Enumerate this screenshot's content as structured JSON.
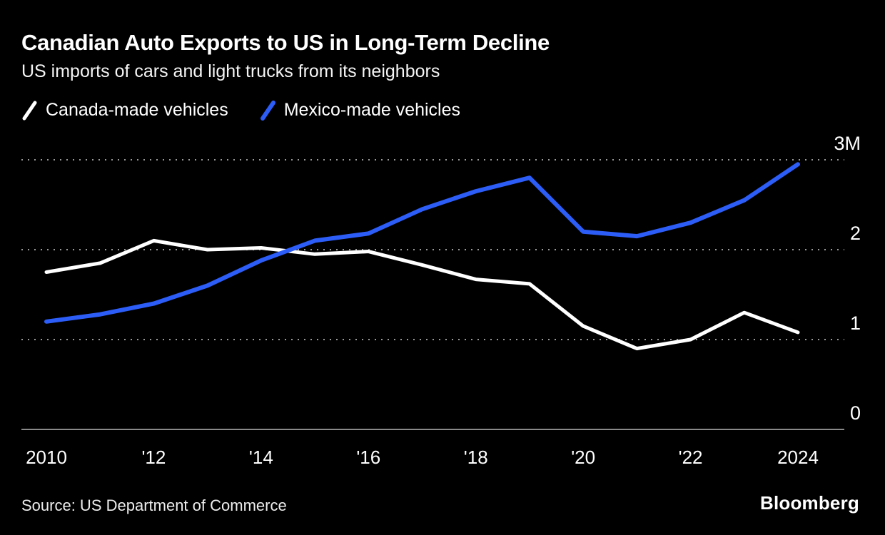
{
  "header": {
    "title": "Canadian Auto Exports to US in Long-Term Decline",
    "subtitle": "US imports of cars and light trucks from its neighbors"
  },
  "legend": [
    {
      "label": "Canada-made vehicles",
      "color": "#ffffff"
    },
    {
      "label": "Mexico-made vehicles",
      "color": "#2d5df7"
    }
  ],
  "chart_data": {
    "type": "line",
    "title": "Canadian Auto Exports to US in Long-Term Decline",
    "subtitle": "US imports of cars and light trucks from its neighbors",
    "x": [
      2010,
      2011,
      2012,
      2013,
      2014,
      2015,
      2016,
      2017,
      2018,
      2019,
      2020,
      2021,
      2022,
      2023,
      2024
    ],
    "series": [
      {
        "name": "Canada-made vehicles",
        "color": "#ffffff",
        "values": [
          1.75,
          1.85,
          2.1,
          2.0,
          2.02,
          1.95,
          1.98,
          1.83,
          1.67,
          1.62,
          1.15,
          0.9,
          1.0,
          1.3,
          1.08
        ]
      },
      {
        "name": "Mexico-made vehicles",
        "color": "#2d5df7",
        "values": [
          1.2,
          1.28,
          1.4,
          1.6,
          1.88,
          2.1,
          2.18,
          2.45,
          2.65,
          2.8,
          2.2,
          2.15,
          2.3,
          2.55,
          2.95
        ]
      }
    ],
    "ylim": [
      0,
      3
    ],
    "yticks": [
      {
        "value": 3,
        "label": "3M"
      },
      {
        "value": 2,
        "label": "2"
      },
      {
        "value": 1,
        "label": "1"
      },
      {
        "value": 0,
        "label": "0"
      }
    ],
    "xticks": [
      {
        "value": 2010,
        "label": "2010"
      },
      {
        "value": 2012,
        "label": "'12"
      },
      {
        "value": 2014,
        "label": "'14"
      },
      {
        "value": 2016,
        "label": "'16"
      },
      {
        "value": 2018,
        "label": "'18"
      },
      {
        "value": 2020,
        "label": "'20"
      },
      {
        "value": 2022,
        "label": "'22"
      },
      {
        "value": 2024,
        "label": "2024"
      }
    ],
    "grid": "horizontal-dotted",
    "legend_position": "top-left",
    "background": "#000000"
  },
  "footer": {
    "source": "Source: US Department of Commerce",
    "brand": "Bloomberg"
  }
}
